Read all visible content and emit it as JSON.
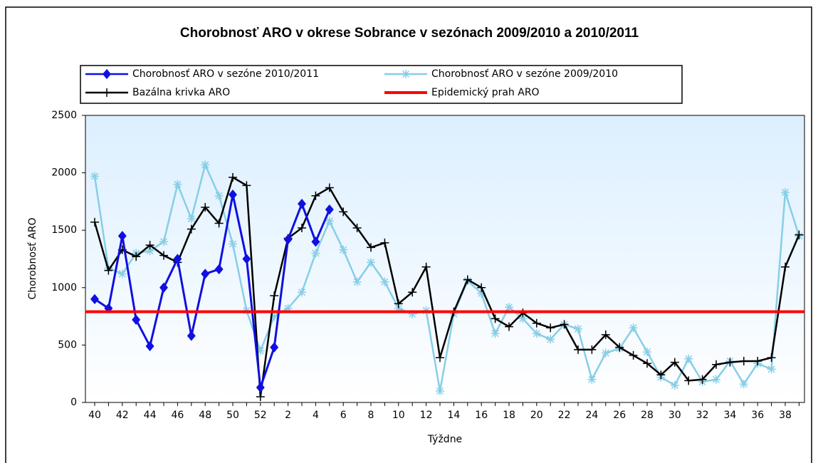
{
  "chart_data": {
    "type": "line",
    "title": "Chorobnosť ARO v okrese Sobrance v sezónach 2009/2010 a 2010/2011",
    "y_label": "Chorobnosť ARO",
    "x_label": "Týždne",
    "categories": [
      "40",
      null,
      "42",
      null,
      "44",
      null,
      "46",
      null,
      "48",
      null,
      "50",
      null,
      "52",
      null,
      "2",
      null,
      "4",
      null,
      "6",
      null,
      "8",
      null,
      "10",
      null,
      "12",
      null,
      "14",
      null,
      "16",
      null,
      "18",
      null,
      "20",
      null,
      "22",
      null,
      "24",
      null,
      "26",
      null,
      "28",
      null,
      "30",
      null,
      "32",
      null,
      "34",
      null,
      "36",
      null,
      "38",
      null
    ],
    "ylim": [
      0,
      2500
    ],
    "yticks": [
      0,
      500,
      1000,
      1500,
      2000,
      2500
    ],
    "series": [
      {
        "name": "Chorobnosť ARO v sezóne 2010/2011",
        "color": "#1010e0",
        "marker": "diamond",
        "values": [
          900,
          820,
          1450,
          720,
          490,
          1000,
          1250,
          580,
          1120,
          1160,
          1810,
          1250,
          130,
          480,
          1420,
          1730,
          1400,
          1680,
          null,
          null,
          null,
          null,
          null,
          null,
          null,
          null,
          null,
          null,
          null,
          null,
          null,
          null,
          null,
          null,
          null,
          null,
          null,
          null,
          null,
          null,
          null,
          null,
          null,
          null,
          null,
          null,
          null,
          null,
          null,
          null,
          null,
          null
        ]
      },
      {
        "name": "Chorobnosť ARO v sezóne 2009/2010",
        "color": "#87cee6",
        "marker": "asterisk",
        "values": [
          1970,
          1170,
          1120,
          1300,
          1320,
          1400,
          1900,
          1600,
          2070,
          1800,
          1380,
          800,
          450,
          750,
          820,
          960,
          1300,
          1580,
          1330,
          1050,
          1220,
          1050,
          820,
          770,
          800,
          100,
          770,
          1060,
          950,
          600,
          830,
          730,
          600,
          550,
          680,
          640,
          200,
          430,
          470,
          650,
          440,
          220,
          150,
          380,
          180,
          200,
          360,
          160,
          340,
          290,
          1830,
          1450
        ]
      },
      {
        "name": "Bazálna krivka ARO",
        "color": "#000000",
        "marker": "plus",
        "values": [
          1570,
          1150,
          1330,
          1270,
          1370,
          1280,
          1220,
          1510,
          1700,
          1560,
          1960,
          1890,
          50,
          930,
          1430,
          1520,
          1800,
          1870,
          1660,
          1520,
          1350,
          1390,
          860,
          960,
          1180,
          390,
          790,
          1070,
          1000,
          730,
          660,
          780,
          690,
          650,
          680,
          460,
          460,
          590,
          480,
          410,
          340,
          240,
          350,
          190,
          200,
          330,
          350,
          360,
          360,
          390,
          1180,
          1460
        ]
      },
      {
        "name": "Epidemický prah ARO",
        "color": "#ff0000",
        "marker": "none",
        "value": 790
      }
    ],
    "grid": false
  }
}
